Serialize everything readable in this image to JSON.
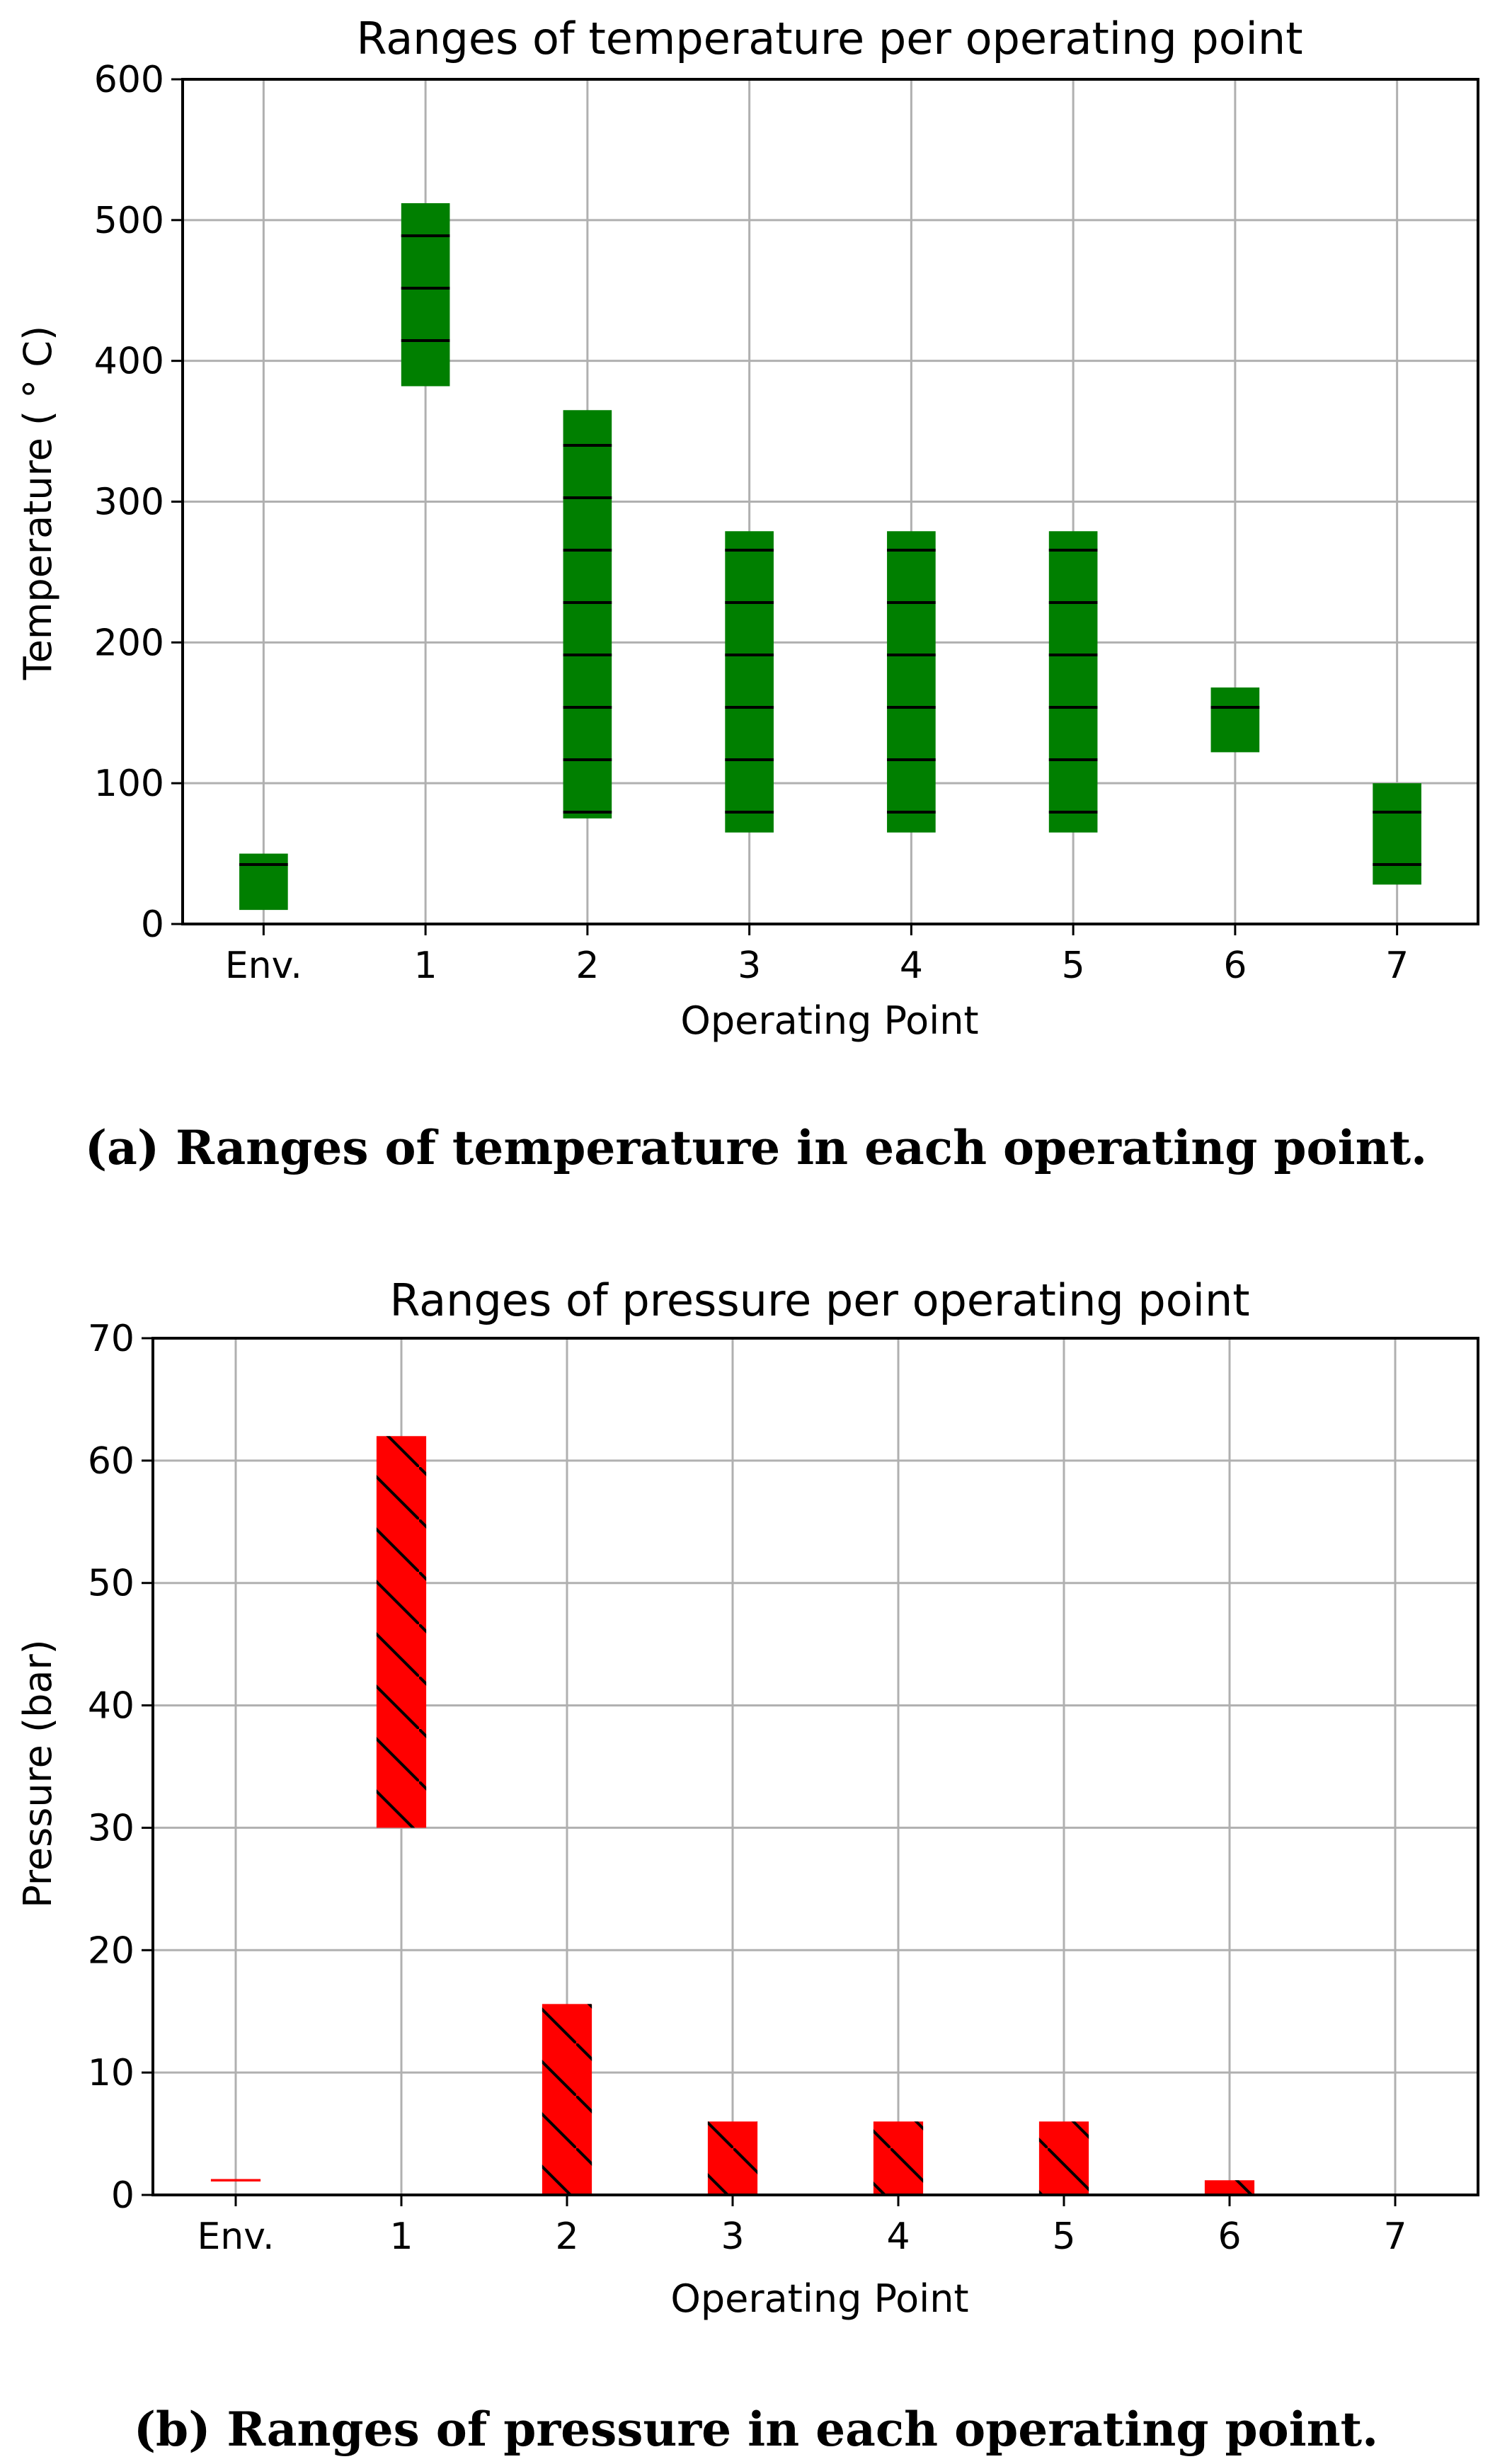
{
  "chart_data": [
    {
      "type": "bar",
      "subtype": "floating-range",
      "title": "Ranges of temperature per operating point",
      "xlabel": "Operating Point",
      "ylabel": "Temperature ( ° C)",
      "categories": [
        "Env.",
        "1",
        "2",
        "3",
        "4",
        "5",
        "6",
        "7"
      ],
      "ranges": [
        [
          10,
          50
        ],
        [
          382,
          512
        ],
        [
          75,
          365
        ],
        [
          65,
          279
        ],
        [
          65,
          279
        ],
        [
          65,
          279
        ],
        [
          122,
          168
        ],
        [
          28,
          100
        ]
      ],
      "ylim": [
        0,
        600
      ],
      "yticks": [
        "0",
        "100",
        "200",
        "300",
        "400",
        "500",
        "600"
      ],
      "grid": true,
      "bar_color": "#007f00",
      "hatch": "horizontal"
    },
    {
      "type": "bar",
      "subtype": "floating-range",
      "title": "Ranges of pressure per operating point",
      "xlabel": "Operating Point",
      "ylabel": "Pressure (bar)",
      "categories": [
        "Env.",
        "1",
        "2",
        "3",
        "4",
        "5",
        "6",
        "7"
      ],
      "ranges": [
        [
          1.1,
          1.3
        ],
        [
          30,
          62
        ],
        [
          0,
          15.6
        ],
        [
          0,
          6
        ],
        [
          0,
          6
        ],
        [
          0,
          6
        ],
        [
          0,
          1.2
        ],
        [
          0,
          0.1
        ]
      ],
      "ylim": [
        0,
        70
      ],
      "yticks": [
        "0",
        "10",
        "20",
        "30",
        "40",
        "50",
        "60",
        "70"
      ],
      "grid": true,
      "bar_color": "#ff0000",
      "hatch": "diagonal"
    }
  ],
  "captions": {
    "a": "(a) Ranges of temperature in each operating point.",
    "b": "(b) Ranges of pressure in each operating point."
  }
}
